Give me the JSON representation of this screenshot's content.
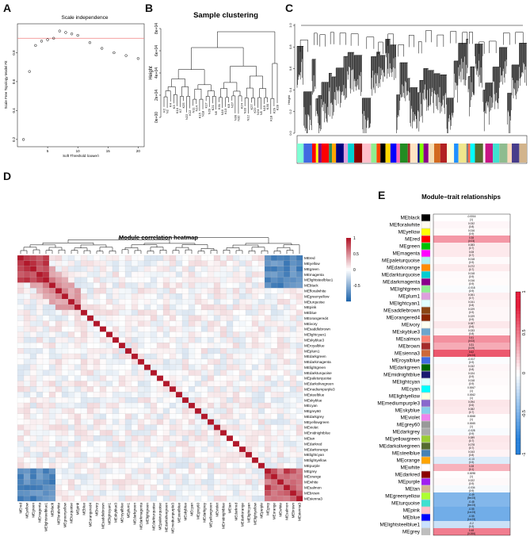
{
  "panels": {
    "a": {
      "letter": "A"
    },
    "b": {
      "letter": "B"
    },
    "c": {
      "letter": "C"
    },
    "d": {
      "letter": "D"
    },
    "e": {
      "letter": "E"
    }
  },
  "colors": {
    "threshold_line": "#f08080",
    "heat_pos": "#b2182b",
    "heat_neg": "#2166ac",
    "heat_mid": "#ffffff"
  },
  "chart_data": [
    {
      "id": "scale_independence",
      "type": "scatter",
      "title": "Scale independence",
      "xlabel": "Soft Threshold (power)",
      "ylabel": "Scale Free Topology Model Fit",
      "xlim": [
        0,
        21
      ],
      "ylim": [
        0.15,
        1.0
      ],
      "xticks": [
        5,
        10,
        15,
        20
      ],
      "yticks": [
        0.2,
        0.4,
        0.6,
        0.8
      ],
      "threshold": 0.9,
      "x": [
        1,
        2,
        3,
        4,
        5,
        6,
        7,
        8,
        9,
        10,
        12,
        14,
        16,
        18,
        20
      ],
      "y": [
        0.2,
        0.67,
        0.85,
        0.88,
        0.89,
        0.9,
        0.95,
        0.94,
        0.93,
        0.92,
        0.87,
        0.83,
        0.8,
        0.78,
        0.76
      ]
    },
    {
      "id": "sample_clustering",
      "type": "dendrogram",
      "title": "Sample clustering",
      "ylabel": "Height",
      "yticks": [
        "0e+00",
        "2e+04",
        "4e+04",
        "6e+04",
        "8e+04"
      ],
      "leaves": [
        "K2",
        "N2",
        "K4",
        "K3",
        "K10",
        "K7",
        "K25",
        "N22",
        "K12",
        "N11",
        "N14",
        "K15",
        "N18",
        "K17",
        "N20",
        "K21",
        "N6",
        "K31",
        "N16",
        "K13",
        "K8",
        "N27",
        "N30",
        "N32",
        "K24",
        "N33",
        "N12",
        "K27",
        "K22",
        "N24",
        "N5",
        "N19",
        "K30",
        "K18",
        "K29",
        "K28"
      ]
    },
    {
      "id": "gene_dendrogram",
      "type": "dendrogram",
      "ylabel": "Height",
      "yticks": [
        "0.0",
        "0.2",
        "0.4",
        "0.6",
        "0.8",
        "1.0"
      ],
      "module_colors": [
        "#7fffd4",
        "#4169e1",
        "#ff0000",
        "#ffff00",
        "#800080",
        "#ff0000",
        "#2e8b57",
        "#ffa500",
        "#000080",
        "#dda0dd",
        "#00ced1",
        "#8b0000",
        "#ffc0cb",
        "#90ee90",
        "#ff4500",
        "#000000",
        "#ffd700",
        "#0000ff",
        "#ff69b4",
        "#228b22",
        "#a52a2a",
        "#ffe4c4",
        "#00008b",
        "#7fff00",
        "#8b008b",
        "#f5deb3",
        "#d2691e",
        "#b22222",
        "#ffffe0",
        "#1e90ff",
        "#f0e68c",
        "#808080",
        "#ff6347",
        "#00ffff",
        "#556b2f",
        "#fff0f5",
        "#c71585",
        "#40e0d0",
        "#8fbc8f",
        "#ffdab9",
        "#483d8b",
        "#d2b48c"
      ]
    },
    {
      "id": "module_correlation",
      "type": "heatmap",
      "title": "Module correlation heatmap",
      "colorbar_ticks": [
        "1",
        "0.5",
        "0",
        "-0.5"
      ],
      "modules": [
        "MEred",
        "MEyellow",
        "MEgreen",
        "MEmagenta",
        "MElightsteelblue1",
        "MEblack",
        "MEfloralwhite",
        "MEgreenyellow",
        "MEturquoise",
        "MEpink",
        "MEblue",
        "MEorangered4",
        "MEivory",
        "MEsaddlebrown",
        "MElightcyan1",
        "MEskyblue3",
        "MEroyalblue",
        "MEplum1",
        "MEdarkgreen",
        "MEdarkmagenta",
        "MElightgreen",
        "MEdarkturquoise",
        "MEpaleturquoise",
        "MEdarkolivegreen",
        "MEmediumpurple3",
        "MEsteelblue",
        "MEskyblue",
        "MEcyan",
        "MEgrey60",
        "MEdarkgrey",
        "MEyellowgreen",
        "MEviolet",
        "MEmidnightblue",
        "MEtan",
        "MEdarkred",
        "MEdarkorange",
        "MElightcyan",
        "MElightyellow",
        "MEpurple",
        "MEgrey",
        "MEorange",
        "MEwhite",
        "MEsalmon",
        "MEbrown",
        "MEsienna3"
      ]
    },
    {
      "id": "module_trait",
      "type": "heatmap",
      "title": "Module−trait relationships",
      "colorbar_ticks": [
        "1",
        "0.5",
        "0",
        "-0.5",
        "-1"
      ],
      "modules": [
        "MEblack",
        "MEfloralwhite",
        "MEyellow",
        "MEred",
        "MEgreen",
        "MEmagenta",
        "MEpaleturquoise",
        "MEdarkorange",
        "MEdarkturquoise",
        "MEdarkmagenta",
        "MElightgreen",
        "MEplum1",
        "MElightcyan1",
        "MEsaddlebrown",
        "MEorangered4",
        "MEivory",
        "MEskyblue3",
        "MEsalmon",
        "MEbrown",
        "MEsienna3",
        "MEroyalblue",
        "MEdarkgreen",
        "MEmidnightblue",
        "MElightcyan",
        "MEcyan",
        "MElightyellow",
        "MEmediumpurple3",
        "MEskyblue",
        "MEviolet",
        "MEgrey60",
        "MEdarkgrey",
        "MEyellowgreen",
        "MEdarkolivegreen",
        "MEsteelblue",
        "MEorange",
        "MEwhite",
        "MEdarkred",
        "MEpurple",
        "MEtan",
        "MEgreenyellow",
        "MEturquoise",
        "MEpink",
        "MEblue",
        "MElightsteelblue1",
        "MEgrey"
      ],
      "module_colors": [
        "#000000",
        "#fffaf0",
        "#ffff00",
        "#ff0000",
        "#00c000",
        "#ff00ff",
        "#afeeee",
        "#ff8c00",
        "#00ced1",
        "#8b008b",
        "#90ee90",
        "#dda0dd",
        "#e0ffff",
        "#8b4513",
        "#8b2500",
        "#fffff0",
        "#6ca6cd",
        "#fa8072",
        "#a52a2a",
        "#cd6839",
        "#4169e1",
        "#006400",
        "#191970",
        "#e0ffff",
        "#00ffff",
        "#ffffe0",
        "#8968cd",
        "#87ceeb",
        "#ee82ee",
        "#999999",
        "#a9a9a9",
        "#9acd32",
        "#556b2f",
        "#4682b4",
        "#ffa500",
        "#ffffff",
        "#8b0000",
        "#a020f0",
        "#d2b48c",
        "#adff2f",
        "#40e0d0",
        "#ffc0cb",
        "#0000ff",
        "#cae1ff",
        "#bebebe"
      ],
      "values": [
        -0.0016,
        0.032,
        0.016,
        0.38,
        0.083,
        0.08,
        0.018,
        0.072,
        0.018,
        0.016,
        -0.018,
        0.061,
        0.041,
        0.029,
        0.029,
        0.087,
        0.033,
        0.41,
        0.31,
        0.62,
        -0.017,
        0.032,
        0.024,
        0.018,
        0.0067,
        0.0062,
        0.094,
        0.082,
        0.0068,
        0.0065,
        -0.028,
        0.089,
        0.078,
        0.043,
        -0.13,
        0.28,
        0.0098,
        0.022,
        -0.034,
        -0.49,
        -0.48,
        -0.55,
        -0.55,
        -0.2,
        0.48
      ],
      "labels": [
        [
          "-0.0016",
          "(1)"
        ],
        [
          "0.032",
          "(0.8)"
        ],
        [
          "0.016",
          "(0.9)"
        ],
        [
          "0.38",
          "(0.03)"
        ],
        [
          "0.083",
          "(0.7)"
        ],
        [
          "0.08",
          "(0.7)"
        ],
        [
          "0.018",
          "(0.9)"
        ],
        [
          "0.072",
          "(0.7)"
        ],
        [
          "0.018",
          "(0.9)"
        ],
        [
          "0.016",
          "(0.9)"
        ],
        [
          "-0.018",
          "(0.9)"
        ],
        [
          "0.061",
          "(0.7)"
        ],
        [
          "0.041",
          "(0.8)"
        ],
        [
          "0.029",
          "(0.9)"
        ],
        [
          "0.029",
          "(0.9)"
        ],
        [
          "0.087",
          "(0.6)"
        ],
        [
          "0.033",
          "(0.8)"
        ],
        [
          "0.41",
          "(0.02)"
        ],
        [
          "0.31",
          "(0.09)"
        ],
        [
          "0.62",
          "(2e-04)"
        ],
        [
          "-0.017",
          "(0.9)"
        ],
        [
          "0.032",
          "(0.8)"
        ],
        [
          "0.024",
          "(0.9)"
        ],
        [
          "0.018",
          "(0.9)"
        ],
        [
          "0.0067",
          "(1)"
        ],
        [
          "0.0062",
          "(1)"
        ],
        [
          "0.094",
          "(0.6)"
        ],
        [
          "0.082",
          "(0.7)"
        ],
        [
          "0.0068",
          "(1)"
        ],
        [
          "0.0065",
          "(1)"
        ],
        [
          "-0.028",
          "(0.9)"
        ],
        [
          "0.089",
          "(0.7)"
        ],
        [
          "0.078",
          "(0.7)"
        ],
        [
          "0.043",
          "(0.8)"
        ],
        [
          "-0.13",
          "(0.5)"
        ],
        [
          "0.28",
          "(0.1)"
        ],
        [
          "0.0098",
          "(1)"
        ],
        [
          "0.022",
          "(0.9)"
        ],
        [
          "-0.034",
          "(0.9)"
        ],
        [
          "-0.49",
          "(5e-03)"
        ],
        [
          "-0.48",
          "(6e-03)"
        ],
        [
          "-0.55",
          "(1e-03)"
        ],
        [
          "-0.55",
          "(1e-03)"
        ],
        [
          "-0.2",
          "(0.3)"
        ],
        [
          "0.48",
          "(0.006)"
        ]
      ]
    }
  ]
}
